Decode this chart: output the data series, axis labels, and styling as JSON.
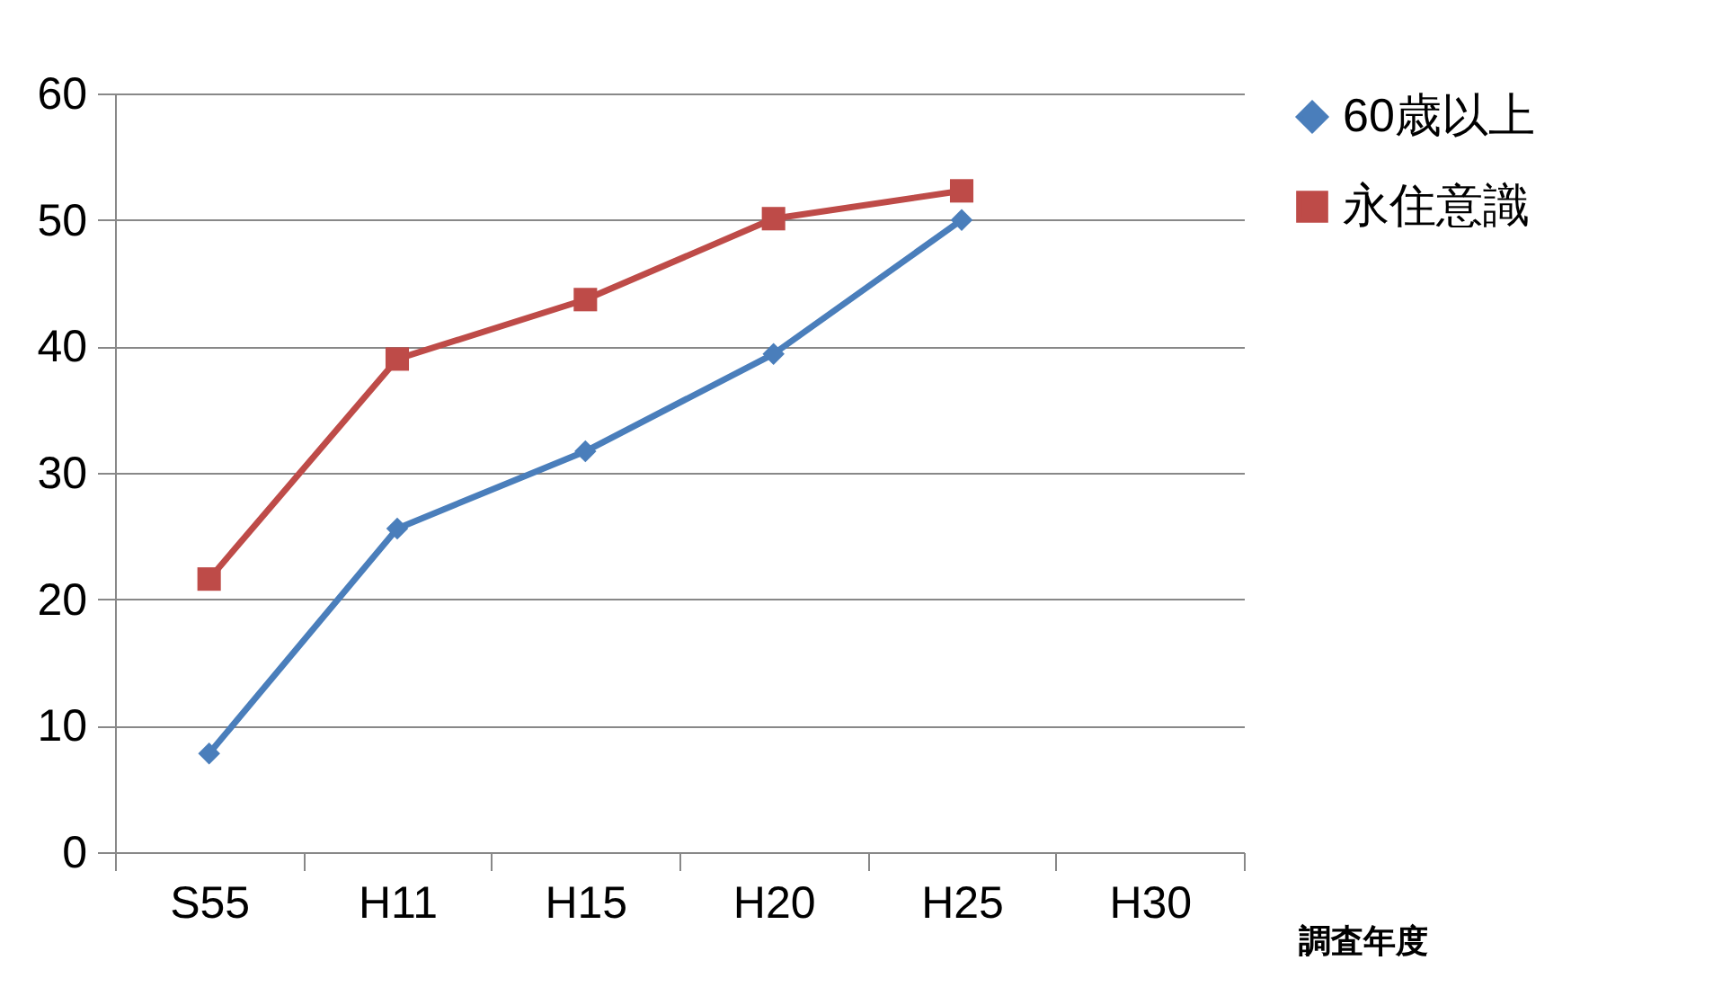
{
  "chart_data": {
    "type": "line",
    "xlabel": "調査年度",
    "categories": [
      "S55",
      "H11",
      "H15",
      "H20",
      "H25",
      "H30"
    ],
    "series": [
      {
        "name": "60歳以上",
        "color": "#4a7ebb",
        "marker": "diamond",
        "values": [
          7.8,
          25.6,
          31.7,
          39.4,
          50,
          null
        ]
      },
      {
        "name": "永住意識",
        "color": "#be4b48",
        "marker": "square",
        "values": [
          21.6,
          39,
          43.7,
          50.1,
          52.3,
          null
        ]
      }
    ],
    "ylim": [
      0,
      60
    ],
    "yticks": [
      0,
      10,
      20,
      30,
      40,
      50,
      60
    ],
    "grid": "y",
    "legend": "right"
  }
}
